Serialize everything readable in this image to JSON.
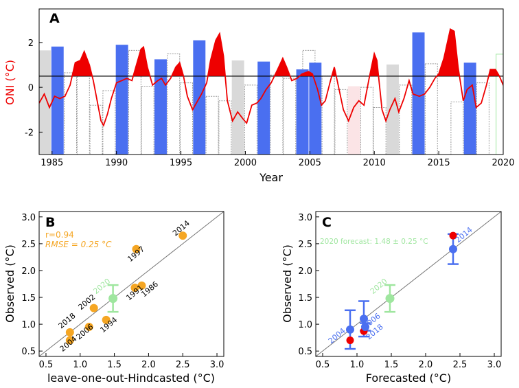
{
  "chart_data": [
    {
      "panel_label": "A",
      "type": "bar",
      "xlabel": "Year",
      "ylabel": "ONI (°C)",
      "xlim": [
        1984,
        2020
      ],
      "ylim": [
        -3,
        3.5
      ],
      "xticks": [
        1985,
        1990,
        1995,
        2000,
        2005,
        2010,
        2015,
        2020
      ],
      "yticks": [
        -2,
        0,
        2
      ],
      "threshold": 0.5,
      "colors": {
        "blue": "#4a6ff0",
        "gray": "#d9d9d9",
        "pink": "#fbe4e6",
        "green": "#9fe69f",
        "red": "#ee0000",
        "outline": "#888888"
      },
      "blue_bars": [
        {
          "year": 1985,
          "value": 1.82
        },
        {
          "year": 1990,
          "value": 1.9
        },
        {
          "year": 1993,
          "value": 1.25
        },
        {
          "year": 1996,
          "value": 2.1
        },
        {
          "year": 2001,
          "value": 1.15
        },
        {
          "year": 2004,
          "value": 0.8
        },
        {
          "year": 2005,
          "value": 1.1
        },
        {
          "year": 2013,
          "value": 2.45
        },
        {
          "year": 2017,
          "value": 1.1
        }
      ],
      "gray_bars": [
        {
          "year": 1984,
          "value": 1.65
        },
        {
          "year": 1999,
          "value": 1.2
        },
        {
          "year": 2011,
          "value": 1.02
        }
      ],
      "pink_bars": [
        {
          "year": 2008,
          "value": 0.05
        }
      ],
      "outline_bars": [
        {
          "year": 1986,
          "value": 0.65
        },
        {
          "year": 1987,
          "value": 0.85
        },
        {
          "year": 1988,
          "value": -0.8
        },
        {
          "year": 1989,
          "value": -0.15
        },
        {
          "year": 1991,
          "value": 1.65
        },
        {
          "year": 1992,
          "value": 0.05
        },
        {
          "year": 1994,
          "value": 1.5
        },
        {
          "year": 1995,
          "value": 0.2
        },
        {
          "year": 1997,
          "value": -0.4
        },
        {
          "year": 1998,
          "value": -0.6
        },
        {
          "year": 2000,
          "value": 0.1
        },
        {
          "year": 2002,
          "value": 0.55
        },
        {
          "year": 2003,
          "value": 0.4
        },
        {
          "year": 2004.5,
          "value": 1.65
        },
        {
          "year": 2006,
          "value": 0.5
        },
        {
          "year": 2007,
          "value": -0.1
        },
        {
          "year": 2009,
          "value": 0.0
        },
        {
          "year": 2010,
          "value": -0.9
        },
        {
          "year": 2012,
          "value": 0.1
        },
        {
          "year": 2014,
          "value": 1.05
        },
        {
          "year": 2016,
          "value": -0.65
        },
        {
          "year": 2018,
          "value": 0.2
        }
      ],
      "green_bars": [
        {
          "year": 2019.5,
          "value": 1.48
        }
      ],
      "oni_curve": [
        [
          1984.0,
          -0.7
        ],
        [
          1984.4,
          -0.3
        ],
        [
          1984.8,
          -0.9
        ],
        [
          1985.2,
          -0.4
        ],
        [
          1985.6,
          -0.5
        ],
        [
          1986.0,
          -0.4
        ],
        [
          1986.4,
          0.1
        ],
        [
          1986.8,
          1.1
        ],
        [
          1987.2,
          1.2
        ],
        [
          1987.5,
          1.6
        ],
        [
          1987.9,
          1.0
        ],
        [
          1988.2,
          0.3
        ],
        [
          1988.5,
          -0.6
        ],
        [
          1988.8,
          -1.5
        ],
        [
          1989.0,
          -1.7
        ],
        [
          1989.3,
          -1.2
        ],
        [
          1989.6,
          -0.5
        ],
        [
          1990.0,
          0.2
        ],
        [
          1990.4,
          0.3
        ],
        [
          1990.8,
          0.4
        ],
        [
          1991.2,
          0.3
        ],
        [
          1991.5,
          0.9
        ],
        [
          1991.9,
          1.7
        ],
        [
          1992.1,
          1.8
        ],
        [
          1992.4,
          0.9
        ],
        [
          1992.8,
          0.1
        ],
        [
          1993.2,
          0.3
        ],
        [
          1993.5,
          0.4
        ],
        [
          1993.8,
          0.1
        ],
        [
          1994.2,
          0.4
        ],
        [
          1994.6,
          0.9
        ],
        [
          1994.9,
          1.1
        ],
        [
          1995.2,
          0.5
        ],
        [
          1995.5,
          -0.4
        ],
        [
          1995.9,
          -1.0
        ],
        [
          1996.2,
          -0.7
        ],
        [
          1996.6,
          -0.3
        ],
        [
          1997.0,
          0.2
        ],
        [
          1997.3,
          1.2
        ],
        [
          1997.7,
          2.1
        ],
        [
          1998.0,
          2.4
        ],
        [
          1998.3,
          1.4
        ],
        [
          1998.6,
          -0.6
        ],
        [
          1999.0,
          -1.5
        ],
        [
          1999.4,
          -1.1
        ],
        [
          1999.8,
          -1.4
        ],
        [
          2000.1,
          -1.6
        ],
        [
          2000.5,
          -0.8
        ],
        [
          2000.9,
          -0.7
        ],
        [
          2001.2,
          -0.5
        ],
        [
          2001.6,
          -0.1
        ],
        [
          2002.0,
          0.2
        ],
        [
          2002.5,
          0.8
        ],
        [
          2002.9,
          1.3
        ],
        [
          2003.2,
          0.9
        ],
        [
          2003.6,
          0.3
        ],
        [
          2004.0,
          0.4
        ],
        [
          2004.4,
          0.6
        ],
        [
          2004.9,
          0.7
        ],
        [
          2005.2,
          0.6
        ],
        [
          2005.6,
          -0.1
        ],
        [
          2005.9,
          -0.8
        ],
        [
          2006.2,
          -0.6
        ],
        [
          2006.6,
          0.3
        ],
        [
          2006.9,
          0.9
        ],
        [
          2007.2,
          0.1
        ],
        [
          2007.6,
          -1.0
        ],
        [
          2008.0,
          -1.5
        ],
        [
          2008.4,
          -0.9
        ],
        [
          2008.8,
          -0.6
        ],
        [
          2009.2,
          -0.8
        ],
        [
          2009.6,
          0.4
        ],
        [
          2010.0,
          1.5
        ],
        [
          2010.2,
          1.2
        ],
        [
          2010.6,
          -1.0
        ],
        [
          2010.9,
          -1.5
        ],
        [
          2011.2,
          -1.0
        ],
        [
          2011.6,
          -0.5
        ],
        [
          2011.9,
          -1.1
        ],
        [
          2012.3,
          -0.5
        ],
        [
          2012.7,
          0.3
        ],
        [
          2013.0,
          -0.3
        ],
        [
          2013.5,
          -0.4
        ],
        [
          2013.9,
          -0.3
        ],
        [
          2014.3,
          0.0
        ],
        [
          2014.7,
          0.4
        ],
        [
          2015.0,
          0.6
        ],
        [
          2015.4,
          1.3
        ],
        [
          2015.9,
          2.6
        ],
        [
          2016.2,
          2.5
        ],
        [
          2016.5,
          0.9
        ],
        [
          2016.9,
          -0.6
        ],
        [
          2017.2,
          -0.1
        ],
        [
          2017.6,
          0.1
        ],
        [
          2017.9,
          -0.9
        ],
        [
          2018.3,
          -0.7
        ],
        [
          2018.7,
          0.1
        ],
        [
          2019.0,
          0.8
        ],
        [
          2019.4,
          0.8
        ],
        [
          2019.7,
          0.5
        ],
        [
          2020.0,
          0.1
        ],
        [
          2020.2,
          0.5
        ]
      ]
    },
    {
      "panel_label": "B",
      "type": "scatter",
      "xlabel": "leave-one-out-Hindcasted (°C)",
      "ylabel": "Observed (°C)",
      "xlim": [
        0.4,
        3.1
      ],
      "ylim": [
        0.4,
        3.1
      ],
      "xticks": [
        "0.5",
        "1.0",
        "1.5",
        "2.0",
        "2.5",
        "3.0"
      ],
      "yticks": [
        "0.5",
        "1.0",
        "1.5",
        "2.0",
        "2.5",
        "3.0"
      ],
      "stats": {
        "r": "r=0.94",
        "rmse": "RMSE = 0.25 °C"
      },
      "points": [
        {
          "label": "2014",
          "x": 2.5,
          "y": 2.65
        },
        {
          "label": "1997",
          "x": 1.82,
          "y": 2.4
        },
        {
          "label": "1986",
          "x": 1.9,
          "y": 1.72
        },
        {
          "label": "1991",
          "x": 1.8,
          "y": 1.68
        },
        {
          "label": "1994",
          "x": 1.38,
          "y": 1.08
        },
        {
          "label": "2002",
          "x": 1.2,
          "y": 1.3
        },
        {
          "label": "2006",
          "x": 1.13,
          "y": 0.95
        },
        {
          "label": "2018",
          "x": 0.85,
          "y": 0.85
        },
        {
          "label": "2004",
          "x": 0.85,
          "y": 0.7
        }
      ],
      "forecast": {
        "label": "2020",
        "x": 1.48,
        "y": 1.48,
        "err": 0.25
      }
    },
    {
      "panel_label": "C",
      "type": "scatter",
      "xlabel": "Forecasted (°C)",
      "ylabel": "Observed (°C)",
      "xlim": [
        0.4,
        3.1
      ],
      "ylim": [
        0.4,
        3.1
      ],
      "xticks": [
        "0.5",
        "1.0",
        "1.5",
        "2.0",
        "2.5",
        "3.0"
      ],
      "yticks": [
        "0.5",
        "1.0",
        "1.5",
        "2.0",
        "2.5",
        "3.0"
      ],
      "forecast_text": "2020 forecast: 1.48 ± 0.25 °C",
      "blue_points": [
        {
          "label": "2014",
          "x": 2.4,
          "y": 2.4,
          "err": 0.28
        },
        {
          "label": "2004",
          "x": 0.9,
          "y": 0.9,
          "err": 0.36
        },
        {
          "label": "2006",
          "x": 1.1,
          "y": 1.1,
          "err": 0.33
        },
        {
          "label": "2018",
          "x": 1.12,
          "y": 0.95,
          "err": 0.07
        }
      ],
      "red_points": [
        {
          "x": 2.4,
          "y": 2.65
        },
        {
          "x": 0.9,
          "y": 0.7
        },
        {
          "x": 1.12,
          "y": 0.95
        },
        {
          "x": 1.1,
          "y": 0.87
        }
      ],
      "forecast": {
        "label": "2020",
        "x": 1.48,
        "y": 1.48,
        "err": 0.25
      }
    }
  ]
}
